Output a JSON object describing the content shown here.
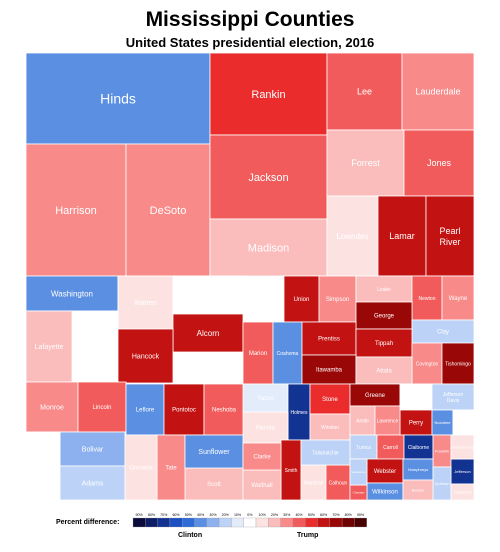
{
  "title": "Mississippi Counties",
  "subtitle": "United States presidential election, 2016",
  "legend": {
    "label": "Percent difference:",
    "ticks": [
      "90%",
      "80%",
      "70%",
      "60%",
      "50%",
      "40%",
      "30%",
      "20%",
      "10%",
      "0%",
      "10%",
      "20%",
      "30%",
      "40%",
      "50%",
      "60%",
      "70%",
      "80%",
      "90%"
    ],
    "clinton_label": "Clinton",
    "trump_label": "Trump",
    "colors": [
      "#0c0c3c",
      "#0f1d66",
      "#123391",
      "#1c4fc0",
      "#2e6bd6",
      "#5b8fe2",
      "#8db1ee",
      "#bcd2f6",
      "#e3ecfb",
      "#ffffff",
      "#fde2e2",
      "#fbbcbc",
      "#f88a8a",
      "#f25b5b",
      "#ea2c2c",
      "#c31212",
      "#990707",
      "#6f0303",
      "#4a0000"
    ]
  },
  "chart_data": {
    "type": "treemap",
    "title": "Mississippi Counties",
    "subtitle": "United States presidential election, 2016",
    "value_meaning": "signed percent difference (positive = Trump margin, negative = Clinton margin)",
    "counties": [
      {
        "name": "Hinds",
        "margin": -45
      },
      {
        "name": "Rankin",
        "margin": 53
      },
      {
        "name": "Lee",
        "margin": 37
      },
      {
        "name": "Lauderdale",
        "margin": 30
      },
      {
        "name": "Harrison",
        "margin": 32
      },
      {
        "name": "DeSoto",
        "margin": 33
      },
      {
        "name": "Jackson",
        "margin": 36
      },
      {
        "name": "Forrest",
        "margin": 22
      },
      {
        "name": "Jones",
        "margin": 43
      },
      {
        "name": "Madison",
        "margin": 23
      },
      {
        "name": "Lowndes",
        "margin": 11
      },
      {
        "name": "Lamar",
        "margin": 55
      },
      {
        "name": "Pearl River",
        "margin": 62
      },
      {
        "name": "Washington",
        "margin": -37
      },
      {
        "name": "Warren",
        "margin": 12
      },
      {
        "name": "Pike",
        "margin": 3
      },
      {
        "name": "Oktibbeha",
        "margin": -4
      },
      {
        "name": "Union",
        "margin": 64
      },
      {
        "name": "Simpson",
        "margin": 31
      },
      {
        "name": "Leake",
        "margin": 20
      },
      {
        "name": "Newton",
        "margin": 40
      },
      {
        "name": "Wayne",
        "margin": 30
      },
      {
        "name": "Lafayette",
        "margin": 15
      },
      {
        "name": "Alcorn",
        "margin": 60
      },
      {
        "name": "George",
        "margin": 71
      },
      {
        "name": "Clay",
        "margin": -17
      },
      {
        "name": "Hancock",
        "margin": 55
      },
      {
        "name": "Marion",
        "margin": 35
      },
      {
        "name": "Coahoma",
        "margin": -44
      },
      {
        "name": "Prentiss",
        "margin": 58
      },
      {
        "name": "Tippah",
        "margin": 58
      },
      {
        "name": "Covington",
        "margin": 30
      },
      {
        "name": "Tishomingo",
        "margin": 70
      },
      {
        "name": "Monroe",
        "margin": 27
      },
      {
        "name": "Lincoln",
        "margin": 43
      },
      {
        "name": "Leflore",
        "margin": -40
      },
      {
        "name": "Pontotoc",
        "margin": 63
      },
      {
        "name": "Neshoba",
        "margin": 44
      },
      {
        "name": "Itawamba",
        "margin": 70
      },
      {
        "name": "Yazoo",
        "margin": -7
      },
      {
        "name": "Attala",
        "margin": 15
      },
      {
        "name": "Holmes",
        "margin": -67
      },
      {
        "name": "Stone",
        "margin": 52
      },
      {
        "name": "Greene",
        "margin": 68
      },
      {
        "name": "Kemper",
        "margin": -4
      },
      {
        "name": "Jefferson Davis",
        "margin": -21
      },
      {
        "name": "Panola",
        "margin": 7
      },
      {
        "name": "Winston",
        "margin": 19
      },
      {
        "name": "Scott",
        "margin": 21
      },
      {
        "name": "Smith",
        "margin": 59
      },
      {
        "name": "Walthall",
        "margin": 20
      },
      {
        "name": "Marshall",
        "margin": 9
      },
      {
        "name": "Tate",
        "margin": 31
      },
      {
        "name": "Perry",
        "margin": 56
      },
      {
        "name": "Noxubee",
        "margin": -44
      },
      {
        "name": "Amite",
        "margin": 23
      },
      {
        "name": "Lawrence",
        "margin": 25
      },
      {
        "name": "Bolivar",
        "margin": -32
      },
      {
        "name": "Sunflower",
        "margin": -38
      },
      {
        "name": "Tunica",
        "margin": -20
      },
      {
        "name": "Carroll",
        "margin": 38
      },
      {
        "name": "Claiborne",
        "margin": -73
      },
      {
        "name": "Chickasaw",
        "margin": 2
      },
      {
        "name": "Franklin",
        "margin": 28
      },
      {
        "name": "Clarke",
        "margin": 29
      },
      {
        "name": "Calhoun",
        "margin": 39
      },
      {
        "name": "Webster",
        "margin": 57
      },
      {
        "name": "Humphreys",
        "margin": -41
      },
      {
        "name": "Jefferson",
        "margin": -72
      },
      {
        "name": "Copiah",
        "margin": 4
      },
      {
        "name": "Adams",
        "margin": -17
      },
      {
        "name": "Grenada",
        "margin": 11
      },
      {
        "name": "Quitman",
        "margin": -25
      },
      {
        "name": "Wilkinson",
        "margin": -38
      },
      {
        "name": "Benton",
        "margin": 23
      },
      {
        "name": "Montgomery",
        "margin": 12
      },
      {
        "name": "Tallahatchie",
        "margin": -16
      },
      {
        "name": "Yalobusha",
        "margin": 12
      },
      {
        "name": "Choctaw",
        "margin": 40
      },
      {
        "name": "Sharkey",
        "margin": -34
      },
      {
        "name": "Issaquena",
        "margin": -18
      }
    ]
  }
}
